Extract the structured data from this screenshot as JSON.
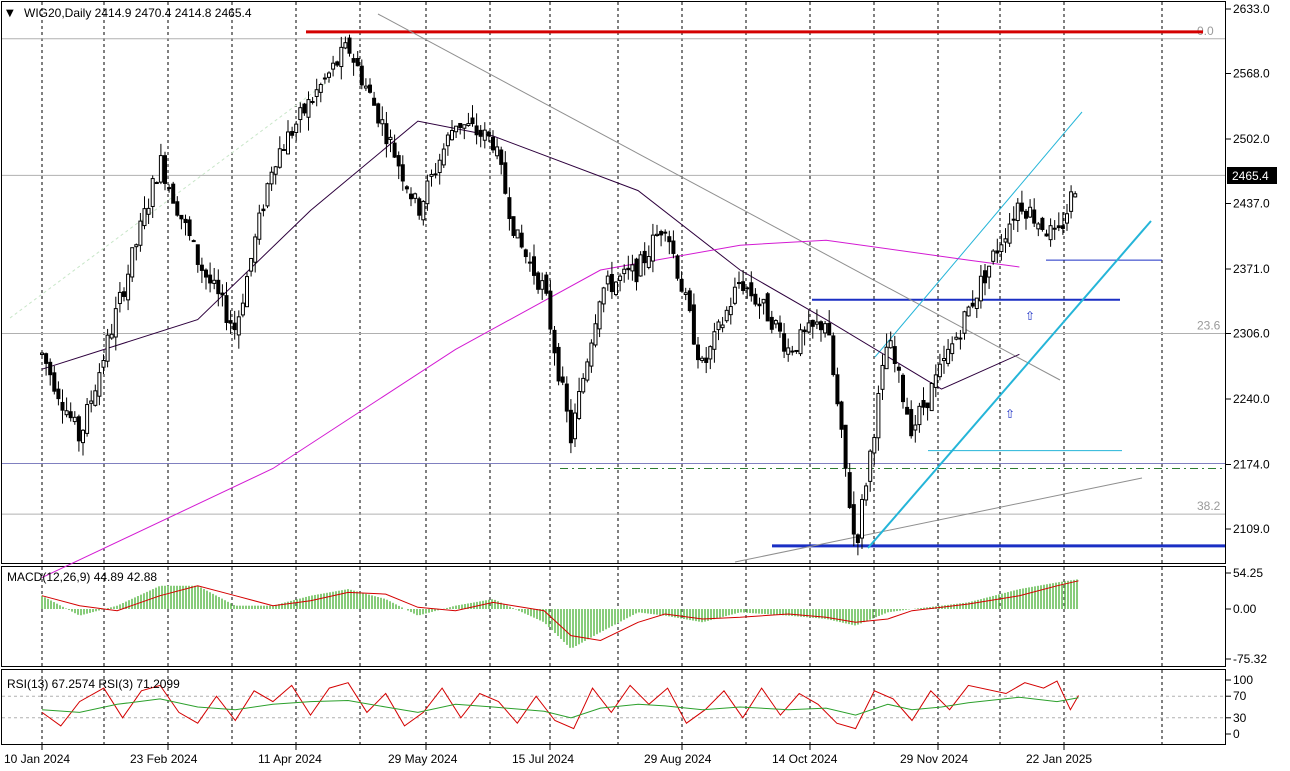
{
  "chart_data": [
    {
      "type": "candlestick",
      "symbol": "WIG20",
      "timeframe": "Daily",
      "header": "WIG20,Daily  2414.9 2470.4 2414.8 2465.4",
      "last": {
        "open": 2414.9,
        "high": 2470.4,
        "low": 2414.8,
        "close": 2465.4
      },
      "current_price_label": "2465.4",
      "ylim": [
        2070,
        2640
      ],
      "yticks": [
        "2633.0",
        "2568.0",
        "2502.0",
        "2437.0",
        "2371.0",
        "2306.0",
        "2240.0",
        "2174.0",
        "2109.0"
      ],
      "xticks": [
        "10 Jan 2024",
        "23 Feb 2024",
        "11 Apr 2024",
        "29 May 2024",
        "15 Jul 2024",
        "29 Aug 2024",
        "14 Oct 2024",
        "29 Nov 2024",
        "22 Jan 2025"
      ],
      "fib_levels": [
        {
          "label": "0.0",
          "value": 2603
        },
        {
          "label": "23.6",
          "value": 2306
        },
        {
          "label": "38.2",
          "value": 2124
        }
      ],
      "key_price_path": [
        [
          "2024-01-10",
          2285
        ],
        [
          "2024-01-24",
          2200
        ],
        [
          "2024-02-07",
          2330
        ],
        [
          "2024-02-23",
          2480
        ],
        [
          "2024-03-08",
          2380
        ],
        [
          "2024-03-22",
          2310
        ],
        [
          "2024-04-05",
          2480
        ],
        [
          "2024-04-19",
          2540
        ],
        [
          "2024-05-03",
          2595
        ],
        [
          "2024-05-17",
          2510
        ],
        [
          "2024-05-29",
          2430
        ],
        [
          "2024-06-12",
          2520
        ],
        [
          "2024-06-26",
          2500
        ],
        [
          "2024-07-05",
          2400
        ],
        [
          "2024-07-15",
          2350
        ],
        [
          "2024-07-25",
          2200
        ],
        [
          "2024-08-05",
          2350
        ],
        [
          "2024-08-19",
          2370
        ],
        [
          "2024-08-29",
          2420
        ],
        [
          "2024-09-12",
          2270
        ],
        [
          "2024-09-26",
          2360
        ],
        [
          "2024-10-08",
          2320
        ],
        [
          "2024-10-14",
          2290
        ],
        [
          "2024-10-28",
          2320
        ],
        [
          "2024-11-08",
          2090
        ],
        [
          "2024-11-20",
          2300
        ],
        [
          "2024-11-29",
          2210
        ],
        [
          "2024-12-10",
          2270
        ],
        [
          "2024-12-20",
          2330
        ],
        [
          "2025-01-08",
          2440
        ],
        [
          "2025-01-22",
          2400
        ],
        [
          "2025-01-30",
          2465.4
        ]
      ],
      "moving_averages": [
        {
          "color": "#2d003d",
          "points": [
            [
              "2024-01-10",
              2270
            ],
            [
              "2024-03-08",
              2320
            ],
            [
              "2024-04-19",
              2430
            ],
            [
              "2024-05-29",
              2520
            ],
            [
              "2024-06-26",
              2505
            ],
            [
              "2024-08-19",
              2450
            ],
            [
              "2024-09-26",
              2370
            ],
            [
              "2024-10-28",
              2320
            ],
            [
              "2024-12-10",
              2250
            ],
            [
              "2025-01-08",
              2285
            ]
          ]
        },
        {
          "color": "#d31ad3",
          "points": [
            [
              "2024-01-10",
              2060
            ],
            [
              "2024-04-05",
              2170
            ],
            [
              "2024-06-12",
              2290
            ],
            [
              "2024-08-05",
              2370
            ],
            [
              "2024-09-26",
              2395
            ],
            [
              "2024-10-28",
              2400
            ],
            [
              "2024-12-20",
              2380
            ],
            [
              "2025-01-08",
              2373
            ]
          ]
        }
      ],
      "horizontal_levels": [
        {
          "value": 2610,
          "color": "#d40000"
        },
        {
          "value": 2340,
          "color": "#1a2fc4"
        },
        {
          "value": 2092,
          "color": "#1a2fc4"
        },
        {
          "value": 2380,
          "color": "#1a2fc4"
        },
        {
          "value": 2188,
          "color": "#25b5d8"
        },
        {
          "value": 2170,
          "color": "#2e7d32"
        }
      ]
    },
    {
      "type": "histogram_line",
      "label": "MACD(12,26,9) 44.89 42.88",
      "yticks": [
        "54.25",
        "0.00",
        "-75.32"
      ],
      "ylim": [
        -80,
        60
      ],
      "macd_points": [
        [
          "2024-01-10",
          20
        ],
        [
          "2024-01-24",
          -10
        ],
        [
          "2024-02-07",
          5
        ],
        [
          "2024-02-23",
          35
        ],
        [
          "2024-03-08",
          35
        ],
        [
          "2024-03-22",
          5
        ],
        [
          "2024-04-05",
          5
        ],
        [
          "2024-04-19",
          20
        ],
        [
          "2024-05-03",
          30
        ],
        [
          "2024-05-17",
          15
        ],
        [
          "2024-05-29",
          -10
        ],
        [
          "2024-06-12",
          5
        ],
        [
          "2024-06-26",
          15
        ],
        [
          "2024-07-15",
          -20
        ],
        [
          "2024-07-25",
          -60
        ],
        [
          "2024-08-05",
          -35
        ],
        [
          "2024-08-19",
          -5
        ],
        [
          "2024-08-29",
          -10
        ],
        [
          "2024-09-12",
          -20
        ],
        [
          "2024-09-26",
          -5
        ],
        [
          "2024-10-14",
          -10
        ],
        [
          "2024-10-28",
          -15
        ],
        [
          "2024-11-08",
          -25
        ],
        [
          "2024-11-20",
          -5
        ],
        [
          "2024-11-29",
          0
        ],
        [
          "2024-12-10",
          5
        ],
        [
          "2024-12-20",
          10
        ],
        [
          "2025-01-08",
          30
        ],
        [
          "2025-01-22",
          40
        ],
        [
          "2025-01-30",
          44.89
        ]
      ]
    },
    {
      "type": "line",
      "label": "RSI(13) 67.2574  RSI(3) 71.2099",
      "yticks": [
        "100",
        "70",
        "30",
        "0"
      ],
      "ylim": [
        0,
        100
      ],
      "rsi13_points": [
        [
          "2024-01-10",
          45
        ],
        [
          "2024-01-24",
          40
        ],
        [
          "2024-02-07",
          55
        ],
        [
          "2024-02-23",
          65
        ],
        [
          "2024-03-08",
          50
        ],
        [
          "2024-03-22",
          45
        ],
        [
          "2024-04-05",
          55
        ],
        [
          "2024-04-19",
          60
        ],
        [
          "2024-05-03",
          62
        ],
        [
          "2024-05-17",
          50
        ],
        [
          "2024-05-29",
          40
        ],
        [
          "2024-06-12",
          55
        ],
        [
          "2024-06-26",
          50
        ],
        [
          "2024-07-15",
          42
        ],
        [
          "2024-07-25",
          30
        ],
        [
          "2024-08-05",
          48
        ],
        [
          "2024-08-19",
          55
        ],
        [
          "2024-08-29",
          52
        ],
        [
          "2024-09-12",
          45
        ],
        [
          "2024-09-26",
          50
        ],
        [
          "2024-10-14",
          45
        ],
        [
          "2024-10-28",
          48
        ],
        [
          "2024-11-08",
          35
        ],
        [
          "2024-11-20",
          55
        ],
        [
          "2024-11-29",
          45
        ],
        [
          "2024-12-10",
          50
        ],
        [
          "2024-12-20",
          58
        ],
        [
          "2025-01-08",
          68
        ],
        [
          "2025-01-22",
          60
        ],
        [
          "2025-01-30",
          67.26
        ]
      ],
      "rsi3_points": [
        [
          "2024-01-10",
          40
        ],
        [
          "2024-01-17",
          15
        ],
        [
          "2024-01-24",
          60
        ],
        [
          "2024-02-02",
          85
        ],
        [
          "2024-02-09",
          30
        ],
        [
          "2024-02-16",
          80
        ],
        [
          "2024-02-23",
          90
        ],
        [
          "2024-03-01",
          40
        ],
        [
          "2024-03-08",
          20
        ],
        [
          "2024-03-15",
          70
        ],
        [
          "2024-03-22",
          25
        ],
        [
          "2024-03-29",
          80
        ],
        [
          "2024-04-05",
          60
        ],
        [
          "2024-04-12",
          90
        ],
        [
          "2024-04-19",
          35
        ],
        [
          "2024-04-26",
          85
        ],
        [
          "2024-05-03",
          95
        ],
        [
          "2024-05-10",
          40
        ],
        [
          "2024-05-17",
          75
        ],
        [
          "2024-05-24",
          15
        ],
        [
          "2024-05-31",
          40
        ],
        [
          "2024-06-07",
          85
        ],
        [
          "2024-06-14",
          30
        ],
        [
          "2024-06-21",
          75
        ],
        [
          "2024-06-28",
          60
        ],
        [
          "2024-07-05",
          20
        ],
        [
          "2024-07-12",
          70
        ],
        [
          "2024-07-19",
          25
        ],
        [
          "2024-07-26",
          10
        ],
        [
          "2024-08-02",
          85
        ],
        [
          "2024-08-09",
          40
        ],
        [
          "2024-08-16",
          90
        ],
        [
          "2024-08-23",
          55
        ],
        [
          "2024-08-30",
          85
        ],
        [
          "2024-09-06",
          20
        ],
        [
          "2024-09-13",
          45
        ],
        [
          "2024-09-20",
          80
        ],
        [
          "2024-09-27",
          30
        ],
        [
          "2024-10-04",
          85
        ],
        [
          "2024-10-11",
          35
        ],
        [
          "2024-10-18",
          75
        ],
        [
          "2024-10-25",
          55
        ],
        [
          "2024-11-01",
          20
        ],
        [
          "2024-11-08",
          10
        ],
        [
          "2024-11-15",
          80
        ],
        [
          "2024-11-22",
          65
        ],
        [
          "2024-11-29",
          25
        ],
        [
          "2024-12-06",
          80
        ],
        [
          "2024-12-13",
          45
        ],
        [
          "2024-12-20",
          90
        ],
        [
          "2025-01-03",
          75
        ],
        [
          "2025-01-10",
          95
        ],
        [
          "2025-01-17",
          85
        ],
        [
          "2025-01-22",
          98
        ],
        [
          "2025-01-27",
          45
        ],
        [
          "2025-01-30",
          71.21
        ]
      ]
    }
  ]
}
